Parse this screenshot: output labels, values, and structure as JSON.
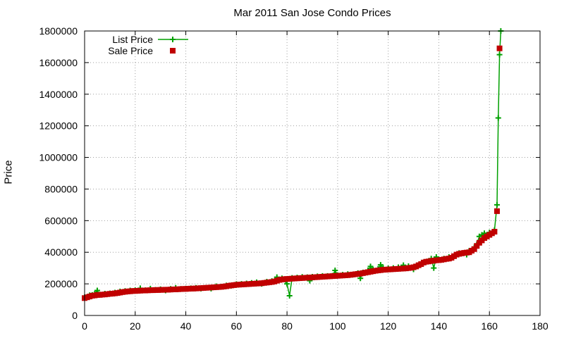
{
  "chart_data": {
    "type": "line",
    "title": "Mar 2011 San Jose Condo Prices",
    "xlabel": "",
    "ylabel": "Price",
    "xlim": [
      0,
      180
    ],
    "ylim": [
      0,
      1800000
    ],
    "x_ticks": [
      0,
      20,
      40,
      60,
      80,
      100,
      120,
      140,
      160,
      180
    ],
    "y_ticks": [
      0,
      200000,
      400000,
      600000,
      800000,
      1000000,
      1200000,
      1400000,
      1600000,
      1800000
    ],
    "grid": true,
    "legend_position": "top-left",
    "series": [
      {
        "name": "List Price",
        "style": "line-with-plus-markers",
        "color": "#00a000",
        "points": [
          [
            0,
            115000
          ],
          [
            1,
            118000
          ],
          [
            2,
            128000
          ],
          [
            3,
            130000
          ],
          [
            4,
            138000
          ],
          [
            5,
            158000
          ],
          [
            6,
            132000
          ],
          [
            8,
            138000
          ],
          [
            10,
            140000
          ],
          [
            12,
            145000
          ],
          [
            14,
            152000
          ],
          [
            16,
            155000
          ],
          [
            18,
            158000
          ],
          [
            20,
            160000
          ],
          [
            22,
            172000
          ],
          [
            24,
            160000
          ],
          [
            26,
            170000
          ],
          [
            28,
            162000
          ],
          [
            30,
            166000
          ],
          [
            32,
            158000
          ],
          [
            34,
            168000
          ],
          [
            36,
            175000
          ],
          [
            38,
            168000
          ],
          [
            40,
            170000
          ],
          [
            42,
            172000
          ],
          [
            44,
            175000
          ],
          [
            46,
            170000
          ],
          [
            48,
            176000
          ],
          [
            50,
            170000
          ],
          [
            52,
            185000
          ],
          [
            54,
            182000
          ],
          [
            56,
            190000
          ],
          [
            58,
            188000
          ],
          [
            60,
            198000
          ],
          [
            62,
            200000
          ],
          [
            64,
            203000
          ],
          [
            66,
            206000
          ],
          [
            68,
            210000
          ],
          [
            70,
            200000
          ],
          [
            72,
            214000
          ],
          [
            74,
            218000
          ],
          [
            76,
            242000
          ],
          [
            78,
            235000
          ],
          [
            80,
            200000
          ],
          [
            81,
            125000
          ],
          [
            82,
            238000
          ],
          [
            84,
            240000
          ],
          [
            86,
            244000
          ],
          [
            88,
            242000
          ],
          [
            89,
            220000
          ],
          [
            90,
            245000
          ],
          [
            92,
            248000
          ],
          [
            94,
            250000
          ],
          [
            96,
            250000
          ],
          [
            98,
            252000
          ],
          [
            99,
            285000
          ],
          [
            100,
            255000
          ],
          [
            102,
            258000
          ],
          [
            104,
            262000
          ],
          [
            106,
            258000
          ],
          [
            108,
            268000
          ],
          [
            109,
            235000
          ],
          [
            110,
            272000
          ],
          [
            112,
            285000
          ],
          [
            113,
            310000
          ],
          [
            114,
            290000
          ],
          [
            116,
            295000
          ],
          [
            117,
            320000
          ],
          [
            118,
            300000
          ],
          [
            120,
            298000
          ],
          [
            122,
            300000
          ],
          [
            124,
            305000
          ],
          [
            126,
            318000
          ],
          [
            128,
            312000
          ],
          [
            130,
            292000
          ],
          [
            132,
            318000
          ],
          [
            134,
            335000
          ],
          [
            136,
            345000
          ],
          [
            137,
            360000
          ],
          [
            138,
            300000
          ],
          [
            139,
            370000
          ],
          [
            140,
            355000
          ],
          [
            142,
            360000
          ],
          [
            144,
            370000
          ],
          [
            146,
            375000
          ],
          [
            148,
            395000
          ],
          [
            150,
            395000
          ],
          [
            151,
            385000
          ],
          [
            152,
            410000
          ],
          [
            154,
            430000
          ],
          [
            155,
            450000
          ],
          [
            156,
            500000
          ],
          [
            157,
            510000
          ],
          [
            158,
            520000
          ],
          [
            160,
            525000
          ],
          [
            162,
            540000
          ],
          [
            163,
            700000
          ],
          [
            163.5,
            1250000
          ],
          [
            164,
            1650000
          ],
          [
            164.5,
            1800000
          ]
        ]
      },
      {
        "name": "Sale Price",
        "style": "square-markers",
        "color": "#c00000",
        "points": [
          [
            0,
            110000
          ],
          [
            1,
            115000
          ],
          [
            2,
            120000
          ],
          [
            3,
            125000
          ],
          [
            4,
            127000
          ],
          [
            5,
            130000
          ],
          [
            6,
            130000
          ],
          [
            7,
            132000
          ],
          [
            8,
            133000
          ],
          [
            9,
            135000
          ],
          [
            10,
            137000
          ],
          [
            11,
            138000
          ],
          [
            12,
            140000
          ],
          [
            13,
            142000
          ],
          [
            14,
            145000
          ],
          [
            15,
            148000
          ],
          [
            16,
            150000
          ],
          [
            17,
            152000
          ],
          [
            18,
            153000
          ],
          [
            19,
            155000
          ],
          [
            20,
            155000
          ],
          [
            21,
            156000
          ],
          [
            22,
            157000
          ],
          [
            23,
            158000
          ],
          [
            24,
            158000
          ],
          [
            25,
            159000
          ],
          [
            26,
            160000
          ],
          [
            27,
            160000
          ],
          [
            28,
            161000
          ],
          [
            29,
            161000
          ],
          [
            30,
            162000
          ],
          [
            31,
            162000
          ],
          [
            32,
            163000
          ],
          [
            33,
            163000
          ],
          [
            34,
            164000
          ],
          [
            35,
            165000
          ],
          [
            36,
            165000
          ],
          [
            37,
            166000
          ],
          [
            38,
            167000
          ],
          [
            39,
            168000
          ],
          [
            40,
            168000
          ],
          [
            41,
            169000
          ],
          [
            42,
            170000
          ],
          [
            43,
            170000
          ],
          [
            44,
            171000
          ],
          [
            45,
            172000
          ],
          [
            46,
            173000
          ],
          [
            47,
            174000
          ],
          [
            48,
            175000
          ],
          [
            49,
            176000
          ],
          [
            50,
            177000
          ],
          [
            51,
            178000
          ],
          [
            52,
            179000
          ],
          [
            53,
            180000
          ],
          [
            54,
            181000
          ],
          [
            55,
            183000
          ],
          [
            56,
            185000
          ],
          [
            57,
            188000
          ],
          [
            58,
            190000
          ],
          [
            59,
            192000
          ],
          [
            60,
            194000
          ],
          [
            61,
            195000
          ],
          [
            62,
            196000
          ],
          [
            63,
            197000
          ],
          [
            64,
            198000
          ],
          [
            65,
            199000
          ],
          [
            66,
            200000
          ],
          [
            67,
            201000
          ],
          [
            68,
            202000
          ],
          [
            69,
            203000
          ],
          [
            70,
            204000
          ],
          [
            71,
            206000
          ],
          [
            72,
            208000
          ],
          [
            73,
            210000
          ],
          [
            74,
            212000
          ],
          [
            75,
            215000
          ],
          [
            76,
            220000
          ],
          [
            77,
            225000
          ],
          [
            78,
            228000
          ],
          [
            79,
            230000
          ],
          [
            80,
            231000
          ],
          [
            81,
            232000
          ],
          [
            82,
            233000
          ],
          [
            83,
            234000
          ],
          [
            84,
            235000
          ],
          [
            85,
            236000
          ],
          [
            86,
            237000
          ],
          [
            87,
            238000
          ],
          [
            88,
            239000
          ],
          [
            89,
            240000
          ],
          [
            90,
            241000
          ],
          [
            91,
            242000
          ],
          [
            92,
            243000
          ],
          [
            93,
            244000
          ],
          [
            94,
            245000
          ],
          [
            95,
            246000
          ],
          [
            96,
            247000
          ],
          [
            97,
            248000
          ],
          [
            98,
            249000
          ],
          [
            99,
            250000
          ],
          [
            100,
            251000
          ],
          [
            101,
            252000
          ],
          [
            102,
            253000
          ],
          [
            103,
            254000
          ],
          [
            104,
            255000
          ],
          [
            105,
            257000
          ],
          [
            106,
            259000
          ],
          [
            107,
            261000
          ],
          [
            108,
            263000
          ],
          [
            109,
            265000
          ],
          [
            110,
            268000
          ],
          [
            111,
            271000
          ],
          [
            112,
            274000
          ],
          [
            113,
            277000
          ],
          [
            114,
            280000
          ],
          [
            115,
            283000
          ],
          [
            116,
            285000
          ],
          [
            117,
            287000
          ],
          [
            118,
            289000
          ],
          [
            119,
            290000
          ],
          [
            120,
            291000
          ],
          [
            121,
            292000
          ],
          [
            122,
            293000
          ],
          [
            123,
            294000
          ],
          [
            124,
            295000
          ],
          [
            125,
            296000
          ],
          [
            126,
            297000
          ],
          [
            127,
            298000
          ],
          [
            128,
            300000
          ],
          [
            129,
            302000
          ],
          [
            130,
            305000
          ],
          [
            131,
            310000
          ],
          [
            132,
            318000
          ],
          [
            133,
            325000
          ],
          [
            134,
            335000
          ],
          [
            135,
            340000
          ],
          [
            136,
            342000
          ],
          [
            137,
            345000
          ],
          [
            138,
            347000
          ],
          [
            139,
            349000
          ],
          [
            140,
            350000
          ],
          [
            141,
            352000
          ],
          [
            142,
            355000
          ],
          [
            143,
            358000
          ],
          [
            144,
            360000
          ],
          [
            145,
            365000
          ],
          [
            146,
            375000
          ],
          [
            147,
            385000
          ],
          [
            148,
            390000
          ],
          [
            149,
            393000
          ],
          [
            150,
            396000
          ],
          [
            151,
            398000
          ],
          [
            152,
            400000
          ],
          [
            153,
            410000
          ],
          [
            154,
            420000
          ],
          [
            155,
            440000
          ],
          [
            156,
            460000
          ],
          [
            157,
            475000
          ],
          [
            158,
            490000
          ],
          [
            159,
            500000
          ],
          [
            160,
            510000
          ],
          [
            161,
            520000
          ],
          [
            162,
            530000
          ],
          [
            163,
            660000
          ],
          [
            164,
            1690000
          ]
        ]
      }
    ]
  }
}
